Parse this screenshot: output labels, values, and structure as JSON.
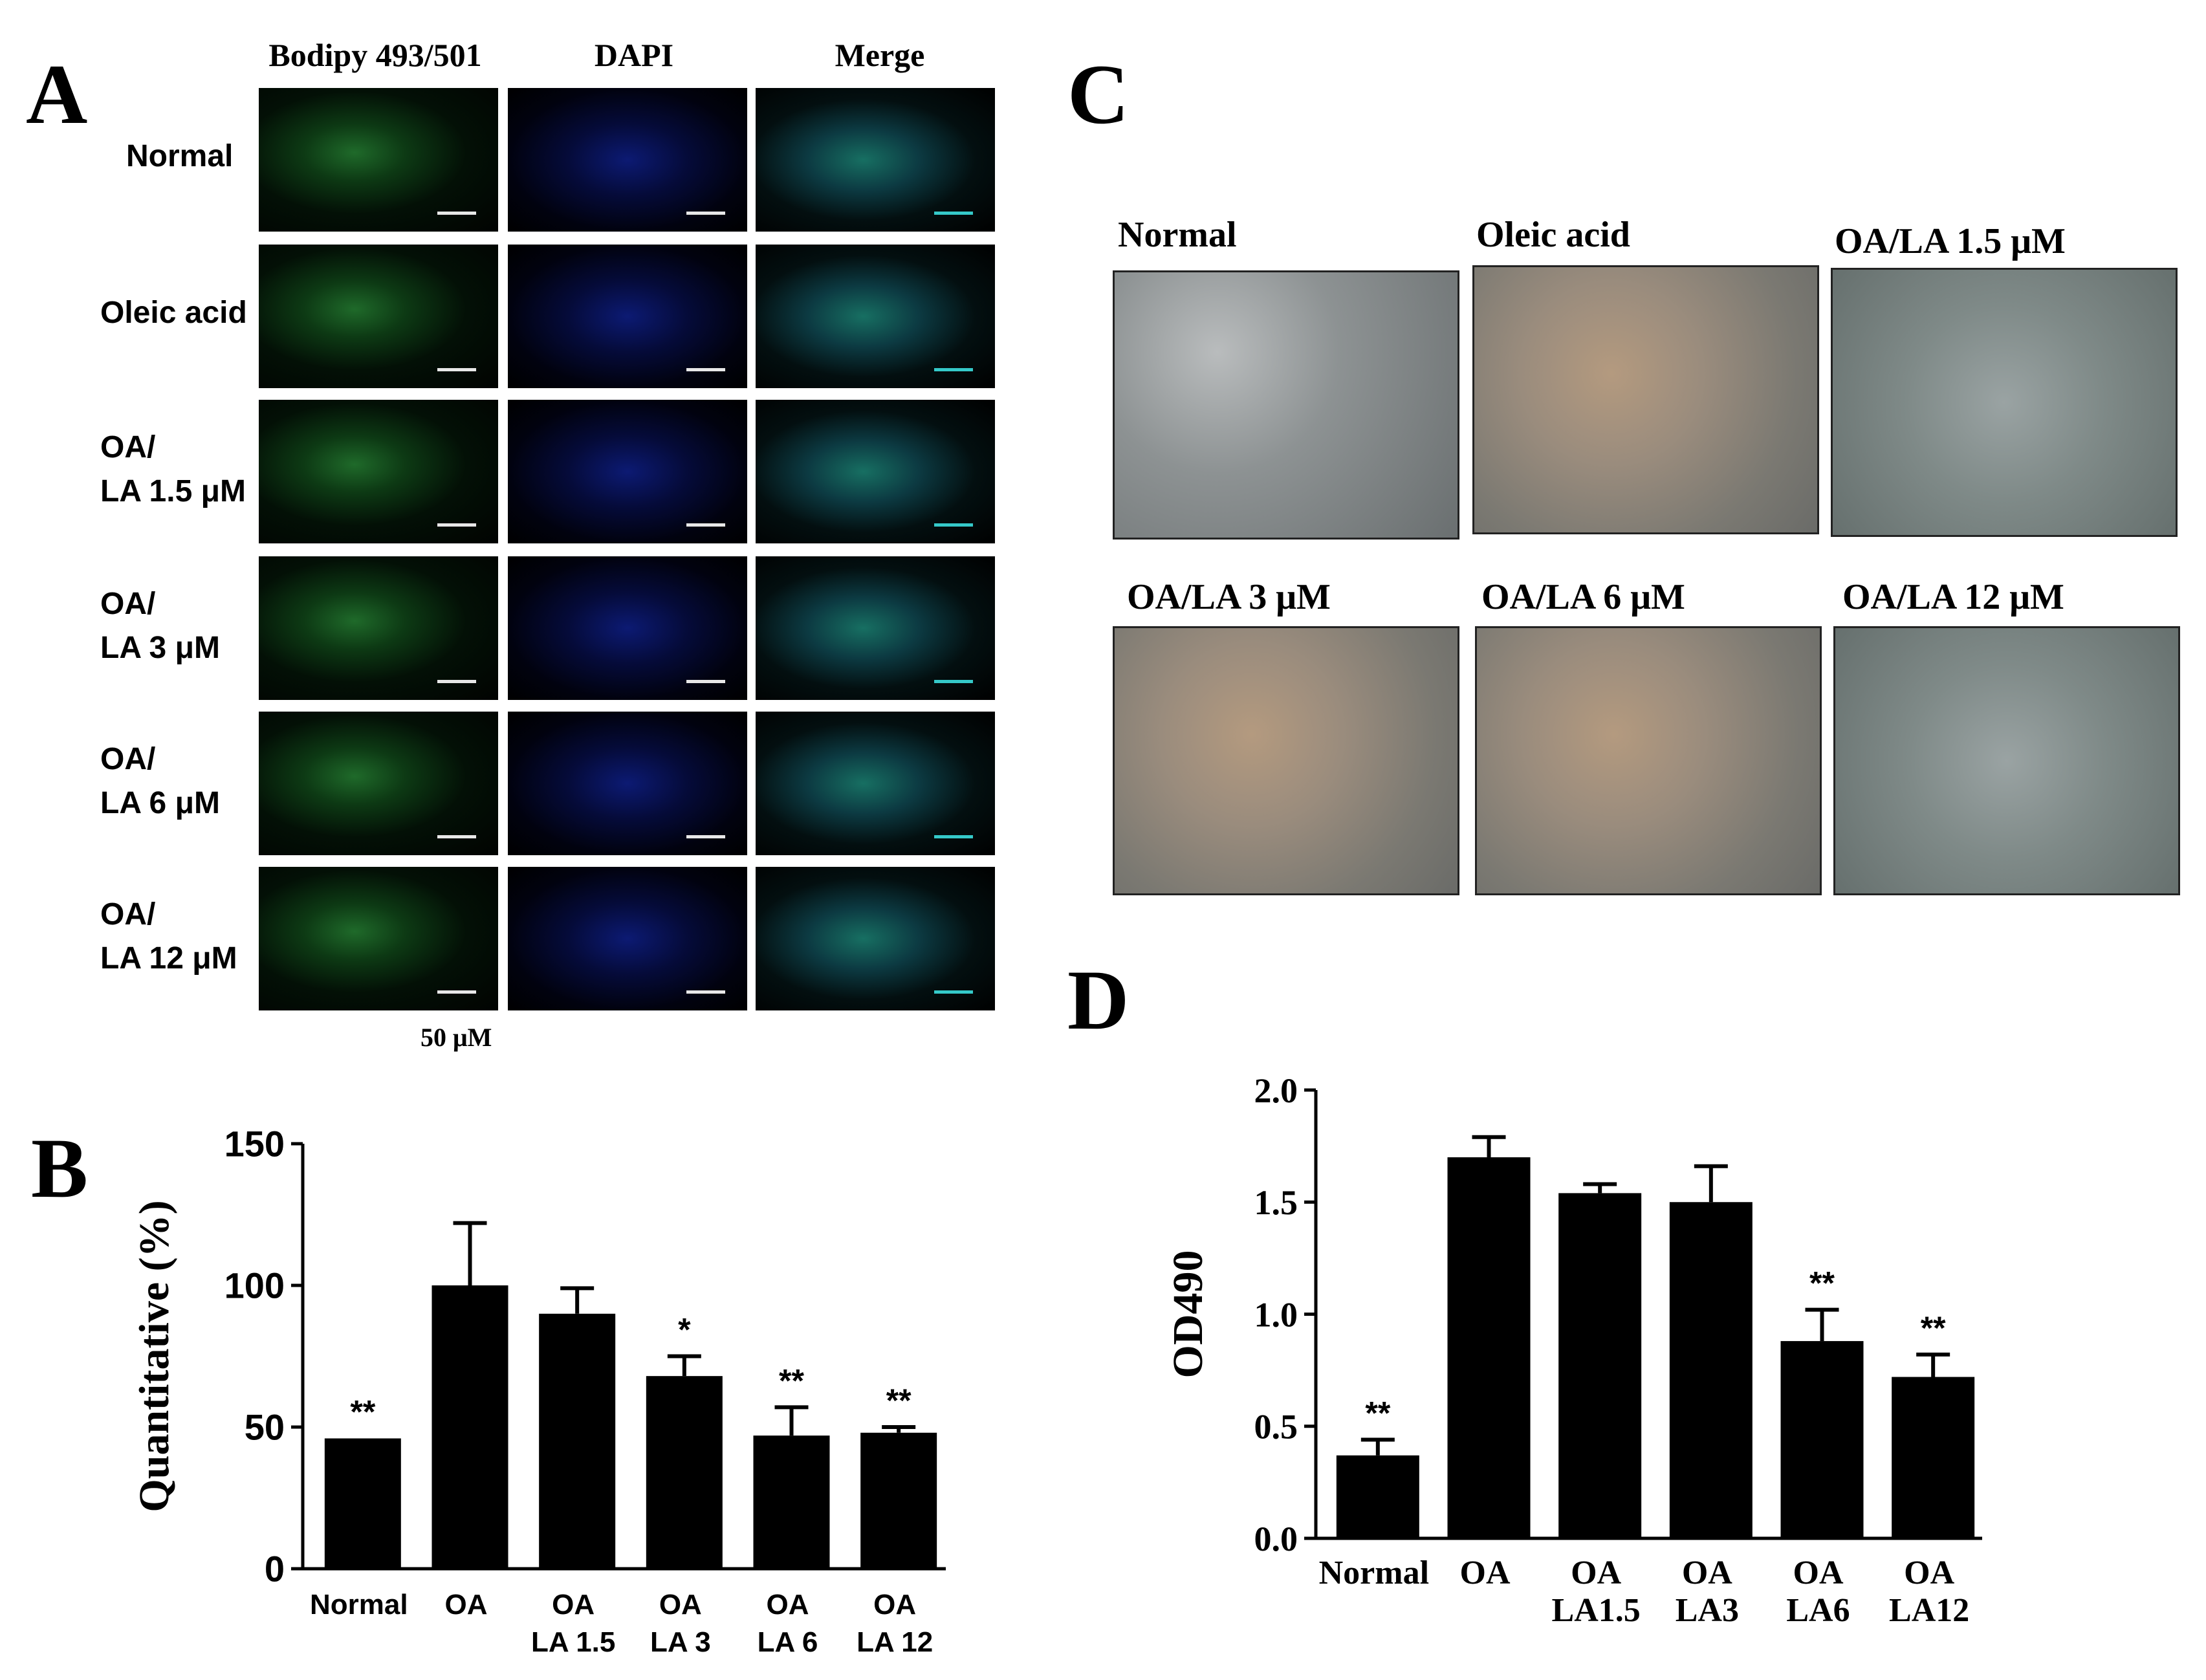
{
  "panel_a": {
    "letter": "A",
    "columns": [
      "Bodipy 493/501",
      "DAPI",
      "Merge"
    ],
    "rows": [
      {
        "line1": "Normal",
        "line2": ""
      },
      {
        "line1": "Oleic acid",
        "line2": ""
      },
      {
        "line1": "OA/",
        "line2": "LA 1.5 μM"
      },
      {
        "line1": "OA/",
        "line2": "LA 3 μM"
      },
      {
        "line1": "OA/",
        "line2": "LA 6 μM"
      },
      {
        "line1": "OA/",
        "line2": "LA 12 μM"
      }
    ],
    "scale_note": "50 μM"
  },
  "panel_c": {
    "letter": "C",
    "labels": [
      "Normal",
      "Oleic acid",
      "OA/LA 1.5 μM",
      "OA/LA 3 μM",
      "OA/LA 6 μM",
      "OA/LA 12 μM"
    ]
  },
  "chart_data": [
    {
      "panel": "B",
      "type": "bar",
      "categories": [
        [
          "Normal"
        ],
        [
          "OA"
        ],
        [
          "OA",
          "LA 1.5"
        ],
        [
          "OA",
          "LA 3"
        ],
        [
          "OA",
          "LA 6"
        ],
        [
          "OA",
          "LA 12"
        ]
      ],
      "values": [
        46,
        100,
        90,
        68,
        47,
        48
      ],
      "errors": [
        0,
        22,
        9,
        7,
        10,
        2
      ],
      "annotations": [
        "**",
        "",
        "",
        "*",
        "**",
        "**"
      ],
      "ylabel": "Quantitative (%)",
      "ylim": [
        0,
        150
      ],
      "yticks": [
        "0",
        "50",
        "100",
        "150"
      ],
      "grid": false
    },
    {
      "panel": "D",
      "type": "bar",
      "categories": [
        [
          "Normal"
        ],
        [
          "OA"
        ],
        [
          "OA",
          "LA1.5"
        ],
        [
          "OA",
          "LA3"
        ],
        [
          "OA",
          "LA6"
        ],
        [
          "OA",
          "LA12"
        ]
      ],
      "values": [
        0.37,
        1.7,
        1.54,
        1.5,
        0.88,
        0.72
      ],
      "errors": [
        0.07,
        0.09,
        0.04,
        0.16,
        0.14,
        0.1
      ],
      "annotations": [
        "**",
        "",
        "",
        "",
        "**",
        "**"
      ],
      "ylabel": "OD490",
      "ylim": [
        0,
        2.0
      ],
      "yticks": [
        "0.0",
        "0.5",
        "1.0",
        "1.5",
        "2.0"
      ],
      "grid": false
    }
  ]
}
